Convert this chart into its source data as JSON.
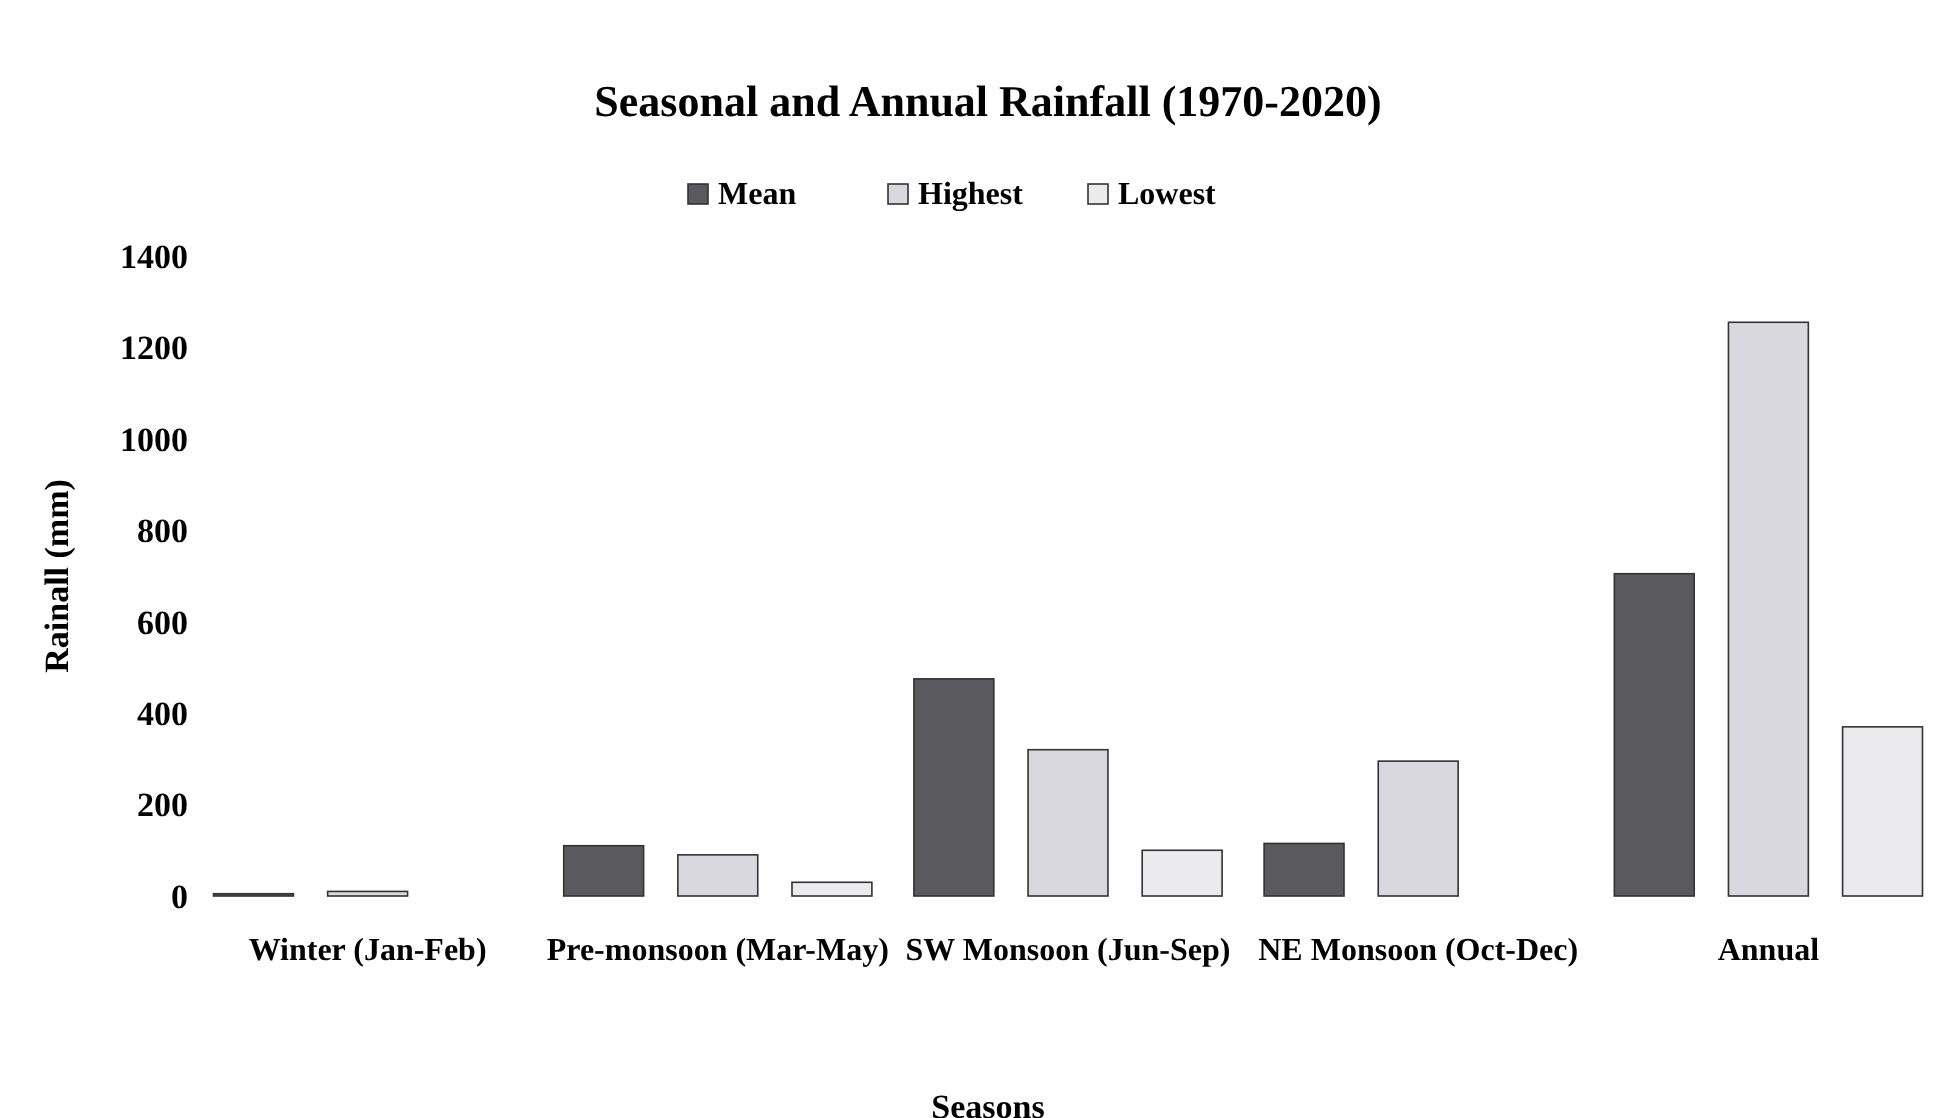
{
  "chart_data": {
    "type": "bar",
    "title": "Seasonal and Annual Rainfall (1970-2020)",
    "xlabel": "Seasons",
    "ylabel": "Rainall (mm)",
    "categories": [
      "Winter (Jan-Feb)",
      "Pre-monsoon (Mar-May)",
      "SW Monsoon (Jun-Sep)",
      "NE Monsoon (Oct-Dec)",
      "Annual"
    ],
    "series": [
      {
        "name": "Mean",
        "color": "#5a5a5e",
        "values": [
          5,
          110,
          475,
          115,
          705
        ]
      },
      {
        "name": "Highest",
        "color": "#d8d8de",
        "values": [
          10,
          90,
          320,
          295,
          1255
        ]
      },
      {
        "name": "Lowest",
        "color": "#ebebee",
        "values": [
          0,
          30,
          100,
          0,
          370
        ]
      }
    ],
    "ylim": [
      0,
      1400
    ],
    "yticks": [
      0,
      200,
      400,
      600,
      800,
      1000,
      1200,
      1400
    ],
    "grid": false,
    "legend": "top"
  }
}
